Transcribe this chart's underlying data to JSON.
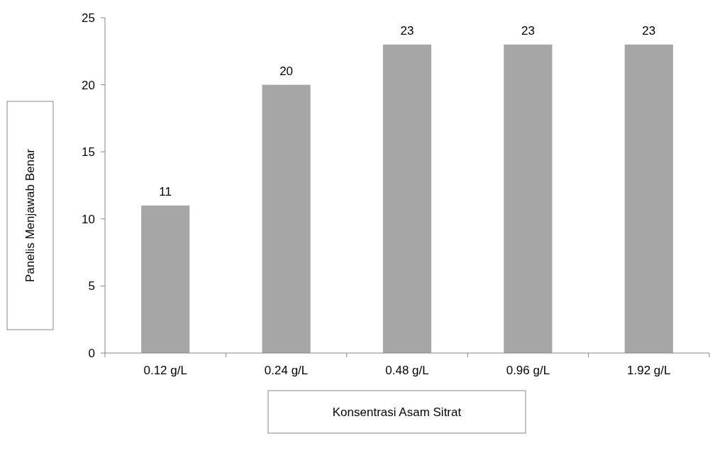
{
  "chart_data": {
    "type": "bar",
    "xlabel": "Konsentrasi Asam Sitrat",
    "ylabel": "Panelis Menjawab Benar",
    "categories": [
      "0.12 g/L",
      "0.24 g/L",
      "0.48 g/L",
      "0.96 g/L",
      "1.92 g/L"
    ],
    "values": [
      11,
      20,
      23,
      23,
      23
    ],
    "color": "#a6a6a6",
    "ylim": [
      0,
      25
    ],
    "yticks": [
      0,
      5,
      10,
      15,
      20,
      25
    ],
    "grid": false,
    "data_labels": true
  }
}
